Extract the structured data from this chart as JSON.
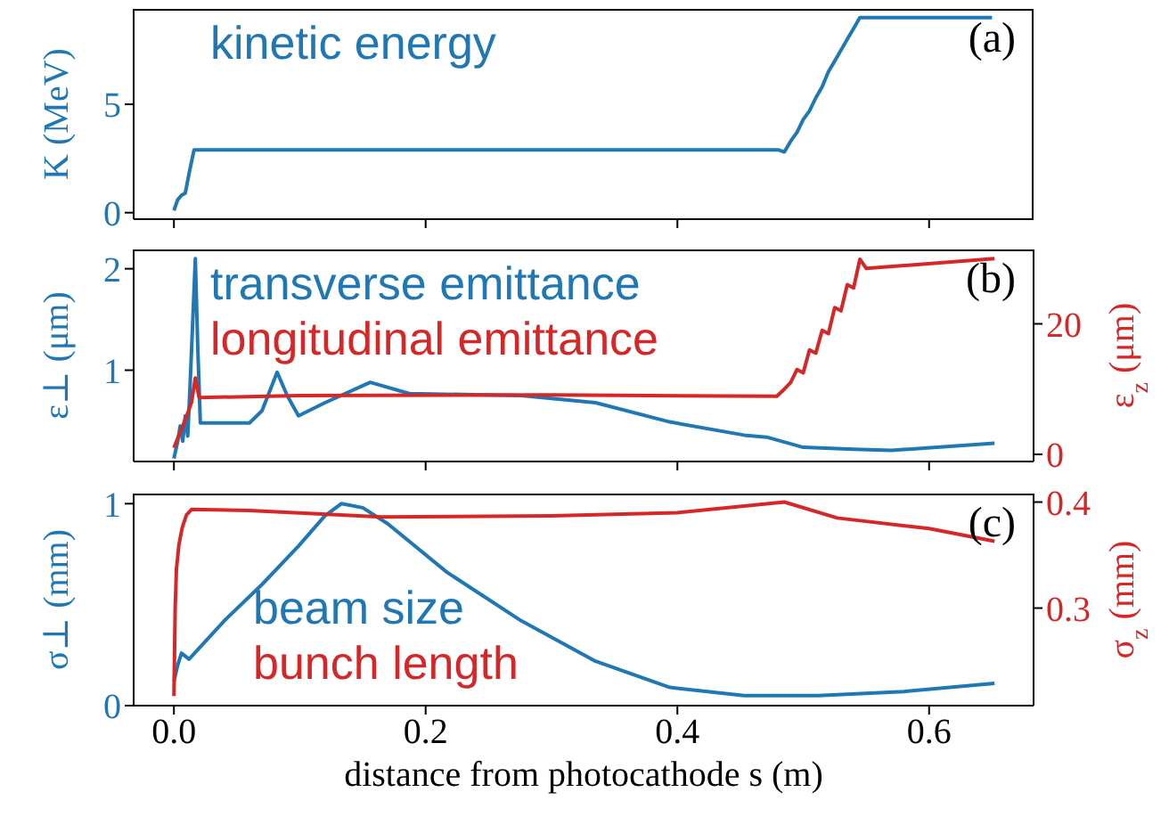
{
  "chart_data": [
    {
      "type": "line",
      "ylabel": "K (MeV)",
      "xlim": [
        -0.032,
        0.683
      ],
      "xticks": [
        {
          "value": 0,
          "label": null
        },
        {
          "value": 0.2,
          "label": null
        },
        {
          "value": 0.4,
          "label": null
        },
        {
          "value": 0.6,
          "label": null
        }
      ],
      "ylim": [
        -0.3,
        9.4
      ],
      "yticks": [
        0,
        5
      ],
      "tick_labels": "y",
      "legend": "top left",
      "grid": false,
      "annotations": [
        "(a)"
      ],
      "series": [
        {
          "name": "kinetic energy",
          "color": "#1f77b4",
          "x": [
            0,
            0.003,
            0.006,
            0.009,
            0.012,
            0.016,
            0.1,
            0.3,
            0.48,
            0.485,
            0.49,
            0.495,
            0.5,
            0.505,
            0.51,
            0.515,
            0.52,
            0.525,
            0.53,
            0.535,
            0.54,
            0.545,
            0.6,
            0.65
          ],
          "values": [
            0.1,
            0.6,
            0.8,
            0.9,
            1.8,
            2.9,
            2.9,
            2.9,
            2.9,
            2.8,
            3.3,
            3.7,
            4.3,
            4.7,
            5.3,
            5.8,
            6.5,
            7.0,
            7.5,
            8.0,
            8.5,
            9.0,
            9.0,
            9.0
          ]
        }
      ]
    },
    {
      "type": "line",
      "ylabel": "ε⊥ (μm)",
      "y2label": "ε$_{z}$ (μm)",
      "xlim": [
        -0.032,
        0.683
      ],
      "xticks": [
        {
          "value": 0,
          "label": null
        },
        {
          "value": 0.2,
          "label": null
        },
        {
          "value": 0.4,
          "label": null
        },
        {
          "value": 0.6,
          "label": null
        }
      ],
      "ylim": [
        0.1,
        2.19
      ],
      "yticks": [
        1,
        2
      ],
      "y2lim": [
        -1.1,
        31.4
      ],
      "y2ticks": [
        0,
        20
      ],
      "tick_labels": "y",
      "legend": "top left",
      "grid": false,
      "annotations": [
        "(b)"
      ],
      "series": [
        {
          "name": "transverse emittance",
          "color": "#1f77b4",
          "x": [
            0,
            0.003,
            0.005,
            0.007,
            0.009,
            0.011,
            0.013,
            0.015,
            0.017,
            0.019,
            0.021,
            0.06,
            0.07,
            0.082,
            0.09,
            0.099,
            0.12,
            0.156,
            0.187,
            0.23,
            0.276,
            0.335,
            0.394,
            0.453,
            0.471,
            0.5,
            0.54,
            0.57,
            0.652
          ],
          "values": [
            0.13,
            0.3,
            0.45,
            0.3,
            0.55,
            0.35,
            0.9,
            1.5,
            2.1,
            1.2,
            0.48,
            0.48,
            0.6,
            0.98,
            0.75,
            0.55,
            0.68,
            0.88,
            0.77,
            0.76,
            0.75,
            0.68,
            0.49,
            0.36,
            0.34,
            0.24,
            0.22,
            0.21,
            0.28
          ]
        },
        {
          "name": "longitudinal emittance",
          "color": "#d62728",
          "axis": "y2",
          "x": [
            0,
            0.005,
            0.01,
            0.014,
            0.017,
            0.02,
            0.1,
            0.3,
            0.479,
            0.485,
            0.49,
            0.495,
            0.5,
            0.505,
            0.51,
            0.515,
            0.52,
            0.525,
            0.53,
            0.535,
            0.54,
            0.545,
            0.55,
            0.652
          ],
          "values": [
            1,
            3.4,
            5.8,
            8,
            11.7,
            8.7,
            9.0,
            9.1,
            8.9,
            10,
            11,
            13,
            12.5,
            16,
            15.5,
            19,
            18.5,
            22.5,
            22,
            26,
            25.5,
            29.9,
            28.5,
            30
          ]
        }
      ]
    },
    {
      "type": "line",
      "xlabel": "distance from photocathode s (m)",
      "ylabel": "σ⊥ (mm)",
      "y2label": "σ$_{z}$ (mm)",
      "xlim": [
        -0.032,
        0.683
      ],
      "xticks": [
        {
          "value": 0,
          "label": "0.0"
        },
        0.2,
        0.4,
        0.6
      ],
      "ylim": [
        0,
        1.05
      ],
      "yticks": [
        0,
        1
      ],
      "y2lim": [
        0.208,
        0.408
      ],
      "y2ticks": [
        0.3,
        0.4
      ],
      "legend": "bottom left",
      "grid": false,
      "annotations": [
        "(c)"
      ],
      "series": [
        {
          "name": "beam size",
          "color": "#1f77b4",
          "x": [
            0,
            0.003,
            0.006,
            0.012,
            0.04,
            0.07,
            0.099,
            0.12,
            0.133,
            0.15,
            0.17,
            0.217,
            0.276,
            0.335,
            0.394,
            0.453,
            0.512,
            0.58,
            0.652
          ],
          "values": [
            0.12,
            0.2,
            0.26,
            0.23,
            0.42,
            0.6,
            0.79,
            0.94,
            1.0,
            0.98,
            0.9,
            0.66,
            0.42,
            0.22,
            0.09,
            0.05,
            0.05,
            0.07,
            0.11
          ]
        },
        {
          "name": "bunch length",
          "color": "#d62728",
          "axis": "y2",
          "x": [
            0,
            0.001,
            0.002,
            0.004,
            0.0066,
            0.01,
            0.014,
            0.06,
            0.165,
            0.3,
            0.4,
            0.485,
            0.527,
            0.6,
            0.652
          ],
          "values": [
            0.217,
            0.3,
            0.337,
            0.36,
            0.376,
            0.388,
            0.393,
            0.392,
            0.386,
            0.387,
            0.39,
            0.4,
            0.385,
            0.375,
            0.363
          ]
        }
      ]
    }
  ]
}
